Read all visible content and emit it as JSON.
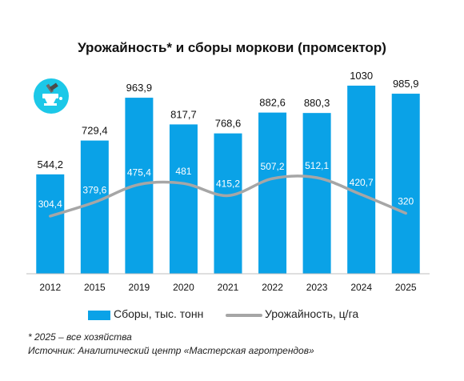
{
  "title": "Урожайность* и сборы моркови (промсектор)",
  "legend": {
    "bars_label": "Сборы, тыс. тонн",
    "line_label": "Урожайность, ц/га"
  },
  "footnote": "* 2025 – все хозяйства",
  "source": "Источник: Аналитический центр «Мастерская агротрендов»",
  "colors": {
    "bars": "#0aa2e7",
    "line": "#a6a6a6",
    "logo_background": "#1cc8e8"
  },
  "logo_icon": "anvil-hammer-icon",
  "chart_data": {
    "type": "bar",
    "categories": [
      "2012",
      "2015",
      "2019",
      "2020",
      "2021",
      "2022",
      "2023",
      "2024",
      "2025"
    ],
    "ylim": [
      0,
      1100
    ],
    "series": [
      {
        "name": "Сборы, тыс. тонн",
        "type": "bar",
        "values": [
          544.2,
          729.4,
          963.9,
          817.7,
          768.6,
          882.6,
          880.3,
          1030,
          985.9
        ],
        "labels": [
          "544,2",
          "729,4",
          "963,9",
          "817,7",
          "768,6",
          "882,6",
          "880,3",
          "1030",
          "985,9"
        ]
      },
      {
        "name": "Урожайность, ц/га",
        "type": "line",
        "smooth": true,
        "values": [
          304.4,
          379.6,
          475.4,
          481,
          415.2,
          507.2,
          512.1,
          420.7,
          320
        ],
        "labels": [
          "304,4",
          "379,6",
          "475,4",
          "481",
          "415,2",
          "507,2",
          "512,1",
          "420,7",
          "320"
        ]
      }
    ],
    "grid": false,
    "legend_position": "bottom"
  }
}
